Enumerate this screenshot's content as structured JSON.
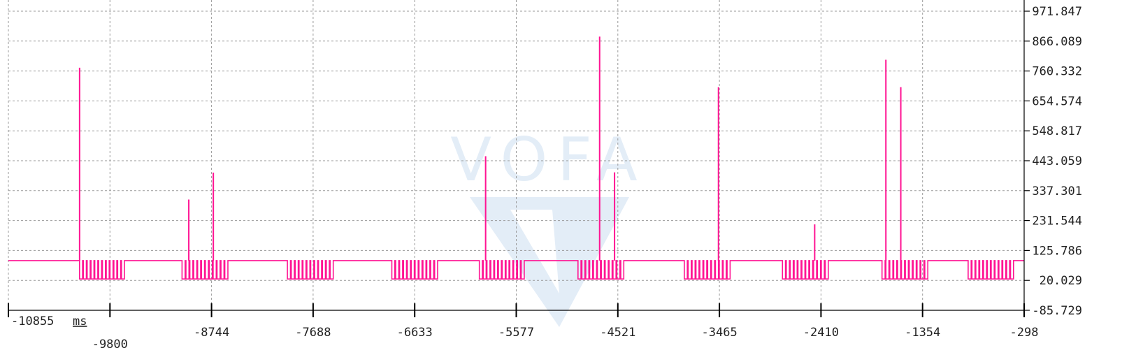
{
  "colors": {
    "signal": "#ff1493",
    "grid": "#9a9a9a",
    "background": "#ffffff",
    "watermark": "#e3edf7"
  },
  "watermark": "VOFA",
  "chart_data": {
    "type": "line",
    "title": "",
    "xlabel": "ms",
    "ylabel": "",
    "xlim": [
      -10855,
      -298
    ],
    "ylim": [
      -85.729,
      971.847
    ],
    "grid": true,
    "legend": "none",
    "x_ticks": [
      "-10855",
      "-9800",
      "-8744",
      "-7688",
      "-6633",
      "-5577",
      "-4521",
      "-3465",
      "-2410",
      "-1354",
      "-298"
    ],
    "y_ticks": [
      "971.847",
      "866.089",
      "760.332",
      "654.574",
      "548.817",
      "443.059",
      "337.301",
      "231.544",
      "125.786",
      "20.029",
      "-85.729"
    ],
    "baseline": 90,
    "pulse_low": 25,
    "bursts": [
      {
        "start": -10115,
        "end": -9640,
        "pulses": 12
      },
      {
        "start": -9050,
        "end": -8565,
        "pulses": 12
      },
      {
        "start": -7955,
        "end": -7470,
        "pulses": 12
      },
      {
        "start": -6870,
        "end": -6385,
        "pulses": 12
      },
      {
        "start": -5960,
        "end": -5485,
        "pulses": 12
      },
      {
        "start": -4935,
        "end": -4450,
        "pulses": 12
      },
      {
        "start": -3830,
        "end": -3345,
        "pulses": 12
      },
      {
        "start": -2810,
        "end": -2325,
        "pulses": 12
      },
      {
        "start": -1775,
        "end": -1290,
        "pulses": 12
      },
      {
        "start": -880,
        "end": -400,
        "pulses": 12
      }
    ],
    "series": [
      {
        "values_spikes": [
          {
            "x": -10115,
            "y": 772
          },
          {
            "x": -8980,
            "y": 306
          },
          {
            "x": -8725,
            "y": 401
          },
          {
            "x": -5895,
            "y": 459
          },
          {
            "x": -4710,
            "y": 882
          },
          {
            "x": -4555,
            "y": 402
          },
          {
            "x": -3475,
            "y": 703
          },
          {
            "x": -2475,
            "y": 218
          },
          {
            "x": -1735,
            "y": 800
          },
          {
            "x": -1580,
            "y": 703
          }
        ]
      }
    ]
  }
}
